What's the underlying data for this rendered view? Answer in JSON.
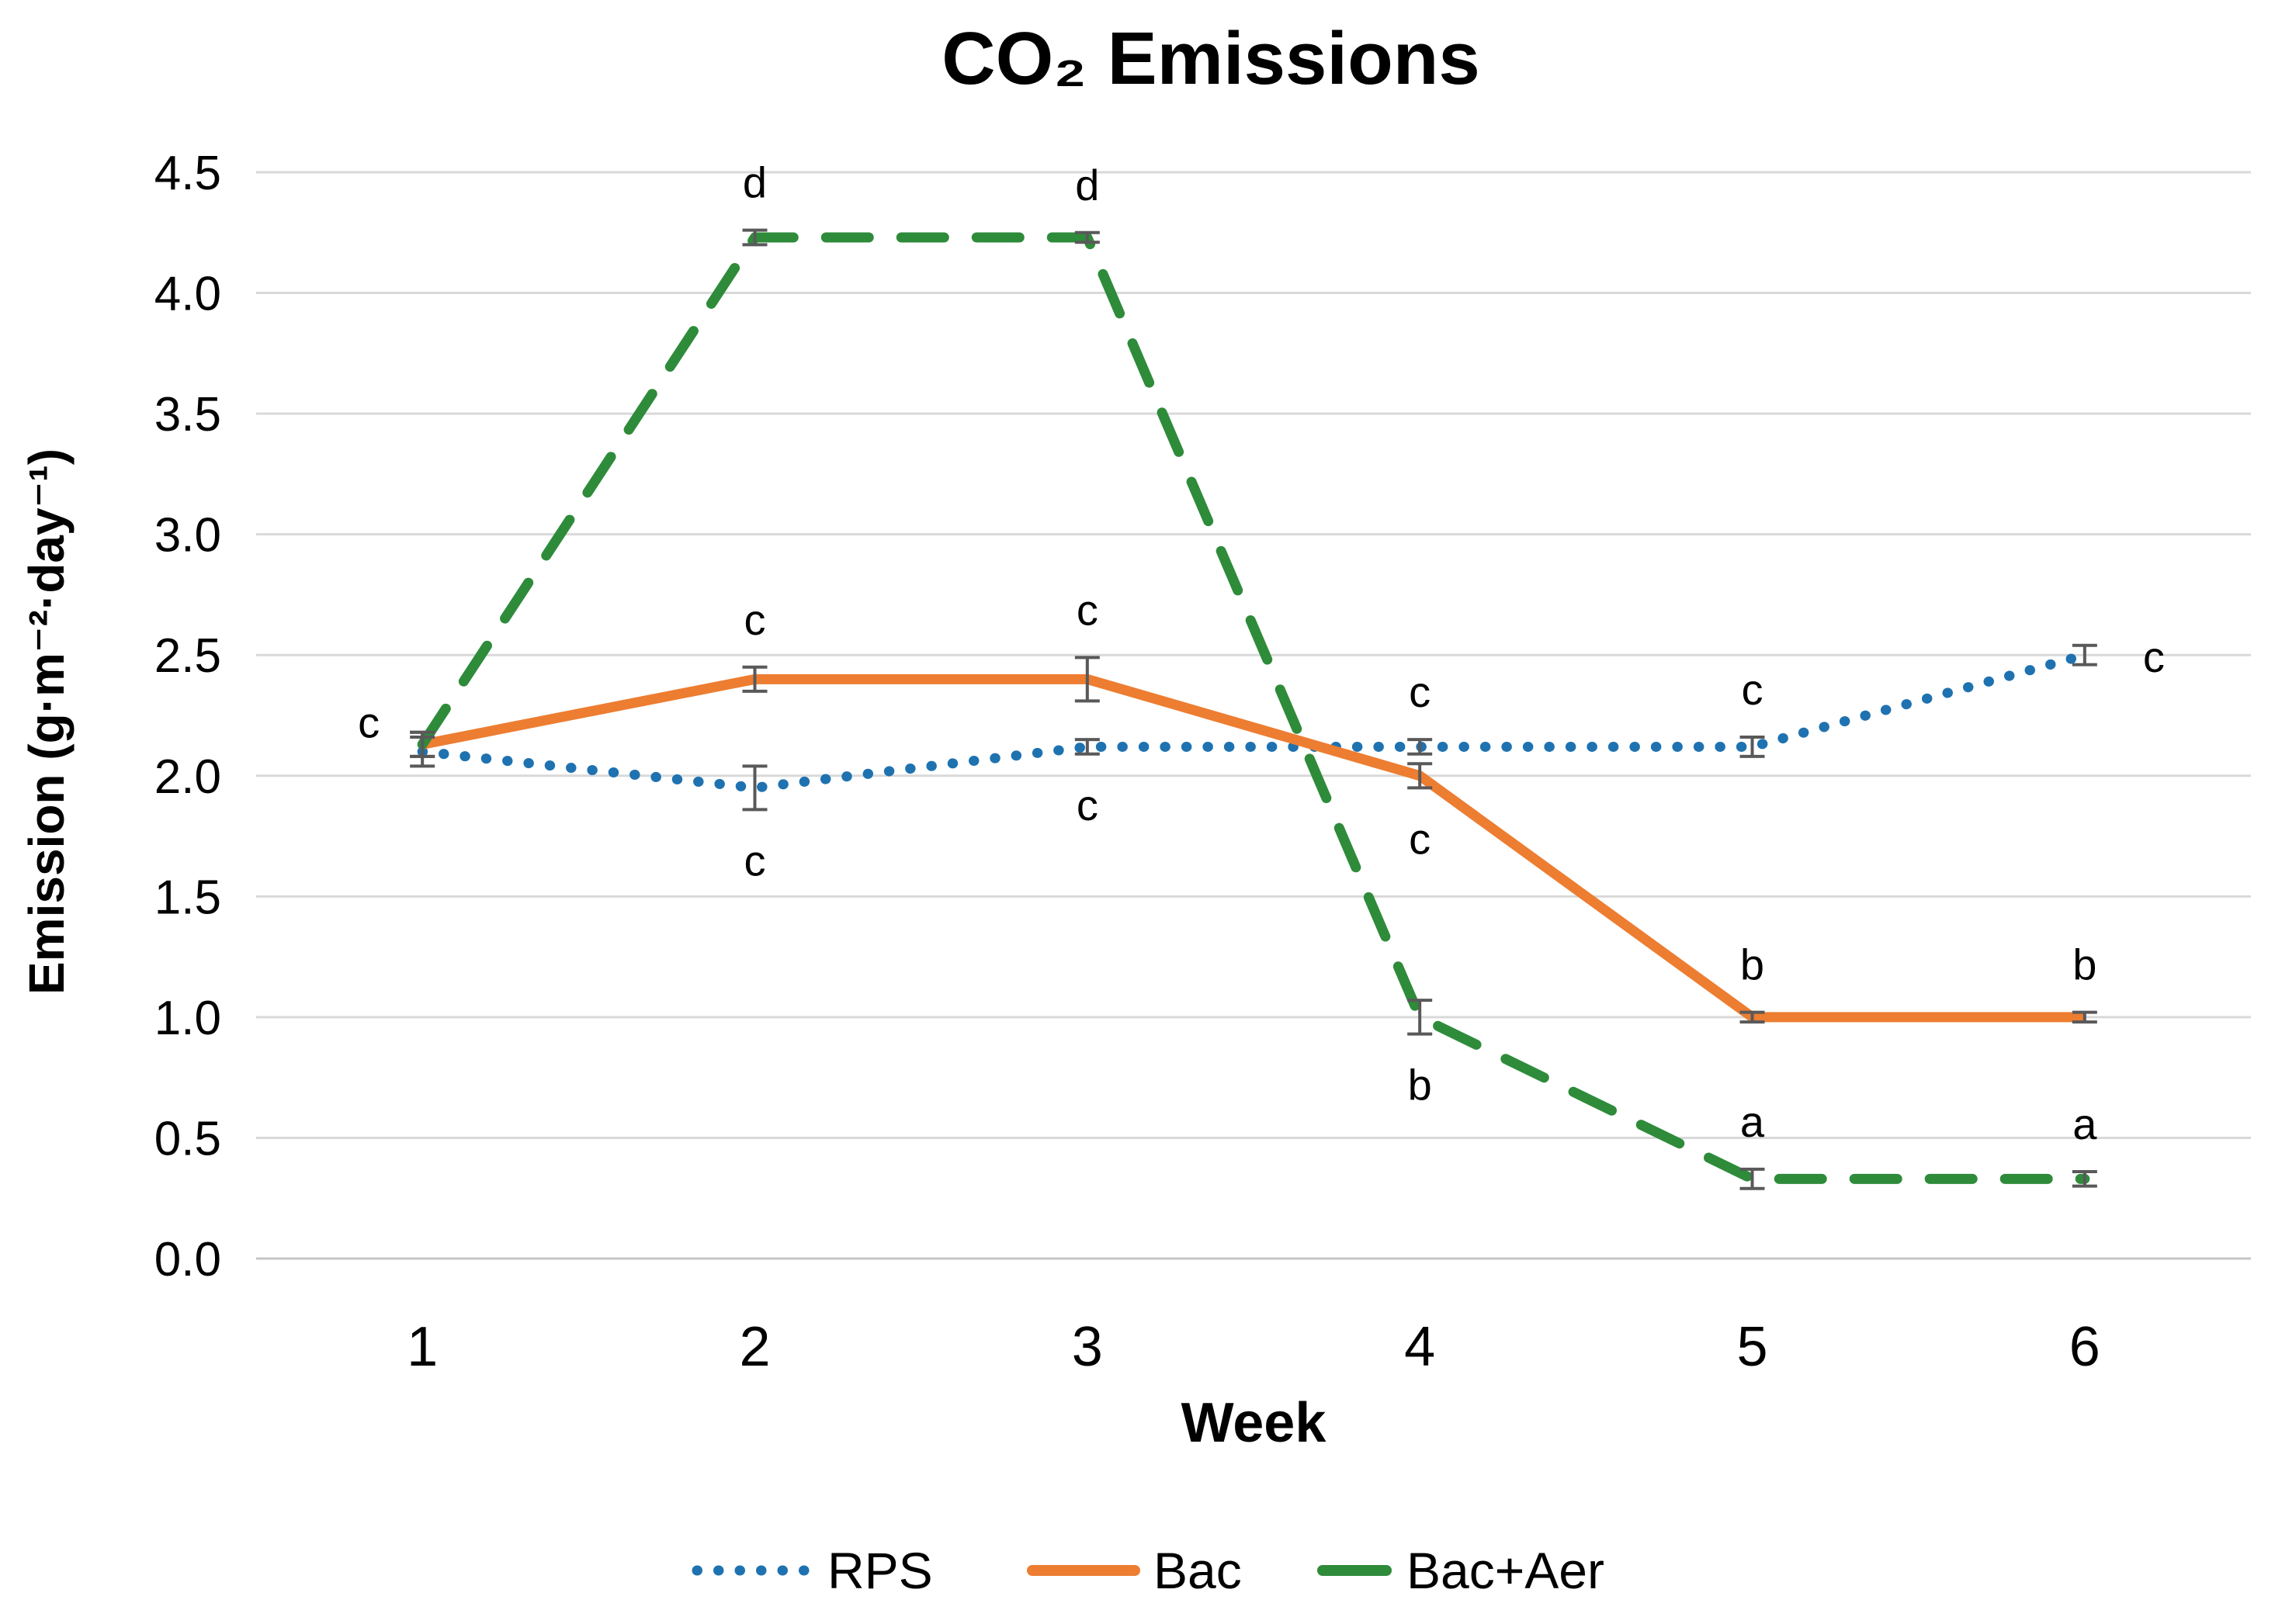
{
  "chart_data": {
    "type": "line",
    "title": "CO₂ Emissions",
    "xlabel": "Week",
    "ylabel": "Emission (g·m⁻²·day⁻¹)",
    "categories": [
      "1",
      "2",
      "3",
      "4",
      "5",
      "6"
    ],
    "ylim": [
      0,
      4.5
    ],
    "ytick_step": 0.5,
    "yticks": [
      "0.0",
      "0.5",
      "1.0",
      "1.5",
      "2.0",
      "2.5",
      "3.0",
      "3.5",
      "4.0",
      "4.5"
    ],
    "grid": "horizontal",
    "gridline_color": "#D9D9D9",
    "axis_line_color": "#C6C6C6",
    "error_bar_color": "#595959",
    "legend_position": "bottom",
    "series": [
      {
        "name": "RPS",
        "color": "#1F72B0",
        "line_style": "dotted",
        "values": [
          2.1,
          1.95,
          2.12,
          2.12,
          2.12,
          2.5
        ],
        "error": [
          0.06,
          0.09,
          0.03,
          0.03,
          0.04,
          0.04
        ],
        "letters": [
          {
            "label": "c",
            "pos": "left"
          },
          {
            "label": "c",
            "pos": "below"
          },
          {
            "label": "c",
            "pos": "below"
          },
          {
            "label": "c",
            "pos": "above"
          },
          {
            "label": "c",
            "pos": "above"
          },
          {
            "label": "c",
            "pos": "right"
          }
        ]
      },
      {
        "name": "Bac",
        "color": "#ED7D31",
        "line_style": "solid",
        "values": [
          2.13,
          2.4,
          2.4,
          2.0,
          1.0,
          1.0
        ],
        "error": [
          0.05,
          0.05,
          0.09,
          0.05,
          0.02,
          0.02
        ],
        "letters": [
          null,
          {
            "label": "c",
            "pos": "above"
          },
          {
            "label": "c",
            "pos": "above"
          },
          {
            "label": "c",
            "pos": "below"
          },
          {
            "label": "b",
            "pos": "above"
          },
          {
            "label": "b",
            "pos": "above"
          }
        ]
      },
      {
        "name": "Bac+Aer",
        "color": "#2E8B3A",
        "line_style": "dashed",
        "values": [
          2.13,
          4.23,
          4.23,
          1.0,
          0.33,
          0.33
        ],
        "error": [
          0.05,
          0.03,
          0.02,
          0.07,
          0.04,
          0.03
        ],
        "letters": [
          null,
          {
            "label": "d",
            "pos": "above"
          },
          {
            "label": "d",
            "pos": "above"
          },
          {
            "label": "b",
            "pos": "below"
          },
          {
            "label": "a",
            "pos": "above"
          },
          {
            "label": "a",
            "pos": "above"
          }
        ]
      }
    ]
  }
}
